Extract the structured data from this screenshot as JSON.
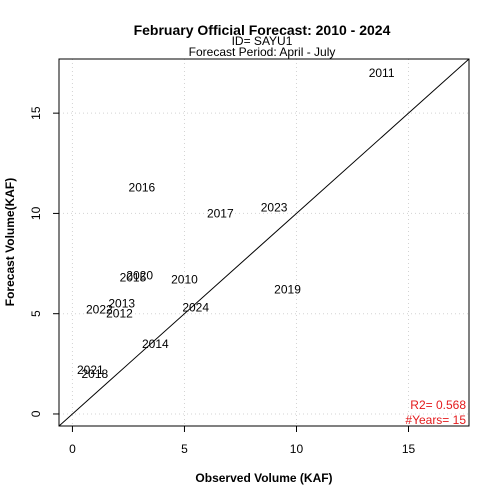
{
  "chart_data": {
    "type": "scatter",
    "title": "February Official Forecast: 2010 - 2024",
    "subtitle_id": "ID= SAYU1",
    "subtitle_period": "Forecast Period:  April - July",
    "xlabel": "Observed Volume (KAF)",
    "ylabel": "Forecast Volume(KAF)",
    "xlim": [
      -0.6,
      17.7
    ],
    "ylim": [
      -0.6,
      17.7
    ],
    "xticks": [
      0,
      5,
      10,
      15
    ],
    "yticks": [
      0,
      5,
      10,
      15
    ],
    "xtick_labels": [
      "0",
      "5",
      "10",
      "15"
    ],
    "ytick_labels": [
      "0",
      "5",
      "10",
      "15"
    ],
    "grid": true,
    "reference_line": "1:1",
    "points": [
      {
        "label": "2010",
        "x": 5.0,
        "y": 6.7
      },
      {
        "label": "2011",
        "x": 13.8,
        "y": 17.0
      },
      {
        "label": "2012",
        "x": 2.1,
        "y": 5.0
      },
      {
        "label": "2013",
        "x": 2.2,
        "y": 5.5
      },
      {
        "label": "2014",
        "x": 3.7,
        "y": 3.5
      },
      {
        "label": "2015",
        "x": 2.7,
        "y": 6.8
      },
      {
        "label": "2016",
        "x": 3.1,
        "y": 11.3
      },
      {
        "label": "2017",
        "x": 6.6,
        "y": 10.0
      },
      {
        "label": "2018",
        "x": 1.0,
        "y": 2.0
      },
      {
        "label": "2019",
        "x": 9.6,
        "y": 6.2
      },
      {
        "label": "2020",
        "x": 3.0,
        "y": 6.9
      },
      {
        "label": "2021",
        "x": 0.8,
        "y": 2.2
      },
      {
        "label": "2022",
        "x": 1.2,
        "y": 5.2
      },
      {
        "label": "2023",
        "x": 9.0,
        "y": 10.3
      },
      {
        "label": "2024",
        "x": 5.5,
        "y": 5.3
      }
    ],
    "stats": {
      "r2_label": "R2=  0.568",
      "years_label": "#Years=  15",
      "color": "#e41a1c"
    }
  }
}
